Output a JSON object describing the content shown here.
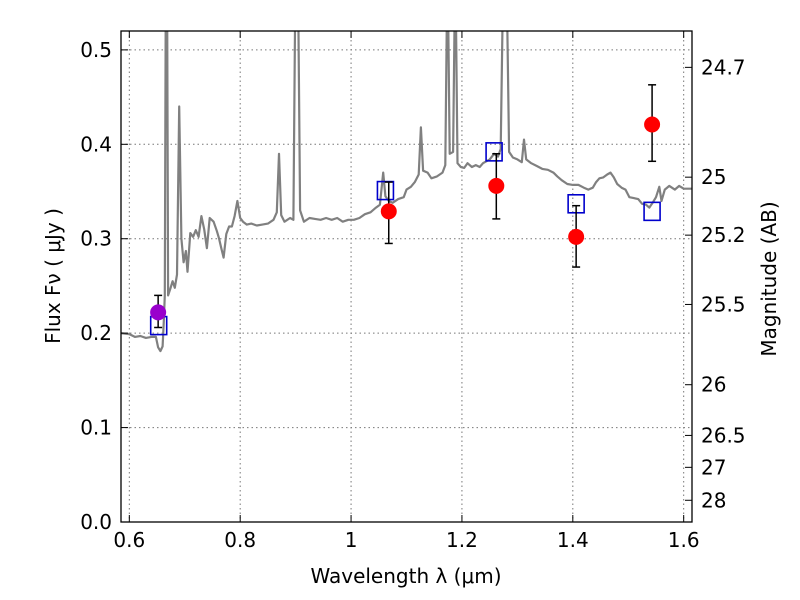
{
  "chart_data": {
    "type": "scatter",
    "xlabel": "Wavelength  λ (μm)",
    "ylabel": "Flux  Fν  ( μJy )",
    "ylabel_right": "Magnitude (AB)",
    "xlim": [
      0.585,
      1.615
    ],
    "ylim": [
      0.0,
      0.52
    ],
    "grid": true,
    "x_ticks": [
      0.6,
      0.8,
      1.0,
      1.2,
      1.4,
      1.6
    ],
    "x_tick_labels": [
      "0.6",
      "0.8",
      "1",
      "1.2",
      "1.4",
      "1.6"
    ],
    "y_ticks": [
      0.0,
      0.1,
      0.2,
      0.3,
      0.4,
      0.5
    ],
    "y_tick_labels": [
      "0.0",
      "0.1",
      "0.2",
      "0.3",
      "0.4",
      "0.5"
    ],
    "right_ticks": [
      {
        "label": "24.7",
        "flux": 0.4815
      },
      {
        "label": "25",
        "flux": 0.3652
      },
      {
        "label": "25.2",
        "flux": 0.3038
      },
      {
        "label": "25.5",
        "flux": 0.2304
      },
      {
        "label": "26",
        "flux": 0.1454
      },
      {
        "label": "26.5",
        "flux": 0.0917
      },
      {
        "label": "27",
        "flux": 0.0579
      },
      {
        "label": "28",
        "flux": 0.023
      }
    ],
    "series": [
      {
        "kind": "line",
        "color": "#808080",
        "points": [
          [
            0.585,
            0.2
          ],
          [
            0.6,
            0.199
          ],
          [
            0.61,
            0.196
          ],
          [
            0.62,
            0.197
          ],
          [
            0.63,
            0.195
          ],
          [
            0.64,
            0.196
          ],
          [
            0.648,
            0.196
          ],
          [
            0.652,
            0.185
          ],
          [
            0.656,
            0.181
          ],
          [
            0.66,
            0.186
          ],
          [
            0.662,
            0.21
          ],
          [
            0.664,
            0.24
          ],
          [
            0.666,
            0.6
          ],
          [
            0.668,
            0.6
          ],
          [
            0.67,
            0.24
          ],
          [
            0.674,
            0.247
          ],
          [
            0.678,
            0.255
          ],
          [
            0.682,
            0.248
          ],
          [
            0.686,
            0.262
          ],
          [
            0.69,
            0.44
          ],
          [
            0.694,
            0.3
          ],
          [
            0.698,
            0.275
          ],
          [
            0.702,
            0.287
          ],
          [
            0.705,
            0.265
          ],
          [
            0.71,
            0.306
          ],
          [
            0.715,
            0.302
          ],
          [
            0.72,
            0.309
          ],
          [
            0.725,
            0.302
          ],
          [
            0.73,
            0.324
          ],
          [
            0.735,
            0.31
          ],
          [
            0.74,
            0.29
          ],
          [
            0.745,
            0.322
          ],
          [
            0.752,
            0.318
          ],
          [
            0.758,
            0.308
          ],
          [
            0.762,
            0.3
          ],
          [
            0.766,
            0.29
          ],
          [
            0.77,
            0.28
          ],
          [
            0.775,
            0.305
          ],
          [
            0.78,
            0.313
          ],
          [
            0.785,
            0.313
          ],
          [
            0.79,
            0.324
          ],
          [
            0.795,
            0.34
          ],
          [
            0.8,
            0.322
          ],
          [
            0.805,
            0.318
          ],
          [
            0.812,
            0.315
          ],
          [
            0.82,
            0.316
          ],
          [
            0.83,
            0.314
          ],
          [
            0.84,
            0.315
          ],
          [
            0.85,
            0.316
          ],
          [
            0.86,
            0.32
          ],
          [
            0.866,
            0.328
          ],
          [
            0.87,
            0.39
          ],
          [
            0.874,
            0.325
          ],
          [
            0.88,
            0.318
          ],
          [
            0.89,
            0.322
          ],
          [
            0.896,
            0.32
          ],
          [
            0.9,
            0.6
          ],
          [
            0.904,
            0.6
          ],
          [
            0.908,
            0.33
          ],
          [
            0.915,
            0.318
          ],
          [
            0.925,
            0.322
          ],
          [
            0.935,
            0.321
          ],
          [
            0.945,
            0.32
          ],
          [
            0.955,
            0.322
          ],
          [
            0.965,
            0.32
          ],
          [
            0.975,
            0.322
          ],
          [
            0.985,
            0.318
          ],
          [
            0.995,
            0.32
          ],
          [
            1.005,
            0.32
          ],
          [
            1.015,
            0.322
          ],
          [
            1.025,
            0.326
          ],
          [
            1.035,
            0.328
          ],
          [
            1.045,
            0.333
          ],
          [
            1.052,
            0.336
          ],
          [
            1.058,
            0.37
          ],
          [
            1.062,
            0.345
          ],
          [
            1.068,
            0.34
          ],
          [
            1.075,
            0.338
          ],
          [
            1.085,
            0.342
          ],
          [
            1.095,
            0.344
          ],
          [
            1.1,
            0.352
          ],
          [
            1.108,
            0.355
          ],
          [
            1.115,
            0.36
          ],
          [
            1.122,
            0.368
          ],
          [
            1.126,
            0.418
          ],
          [
            1.13,
            0.372
          ],
          [
            1.138,
            0.37
          ],
          [
            1.145,
            0.364
          ],
          [
            1.155,
            0.366
          ],
          [
            1.165,
            0.37
          ],
          [
            1.17,
            0.378
          ],
          [
            1.174,
            0.6
          ],
          [
            1.178,
            0.39
          ],
          [
            1.184,
            0.392
          ],
          [
            1.188,
            0.6
          ],
          [
            1.192,
            0.38
          ],
          [
            1.198,
            0.376
          ],
          [
            1.204,
            0.375
          ],
          [
            1.21,
            0.38
          ],
          [
            1.218,
            0.376
          ],
          [
            1.225,
            0.378
          ],
          [
            1.232,
            0.376
          ],
          [
            1.238,
            0.38
          ],
          [
            1.244,
            0.382
          ],
          [
            1.25,
            0.384
          ],
          [
            1.258,
            0.39
          ],
          [
            1.265,
            0.387
          ],
          [
            1.27,
            0.395
          ],
          [
            1.275,
            0.6
          ],
          [
            1.28,
            0.6
          ],
          [
            1.285,
            0.392
          ],
          [
            1.292,
            0.386
          ],
          [
            1.3,
            0.384
          ],
          [
            1.308,
            0.381
          ],
          [
            1.312,
            0.405
          ],
          [
            1.316,
            0.384
          ],
          [
            1.325,
            0.38
          ],
          [
            1.335,
            0.377
          ],
          [
            1.345,
            0.374
          ],
          [
            1.355,
            0.373
          ],
          [
            1.365,
            0.37
          ],
          [
            1.372,
            0.366
          ],
          [
            1.38,
            0.362
          ],
          [
            1.39,
            0.358
          ],
          [
            1.4,
            0.357
          ],
          [
            1.41,
            0.357
          ],
          [
            1.42,
            0.354
          ],
          [
            1.428,
            0.352
          ],
          [
            1.436,
            0.354
          ],
          [
            1.442,
            0.36
          ],
          [
            1.448,
            0.364
          ],
          [
            1.455,
            0.365
          ],
          [
            1.462,
            0.368
          ],
          [
            1.468,
            0.37
          ],
          [
            1.474,
            0.365
          ],
          [
            1.48,
            0.358
          ],
          [
            1.488,
            0.354
          ],
          [
            1.495,
            0.352
          ],
          [
            1.502,
            0.344
          ],
          [
            1.51,
            0.343
          ],
          [
            1.518,
            0.342
          ],
          [
            1.525,
            0.337
          ],
          [
            1.532,
            0.336
          ],
          [
            1.538,
            0.333
          ],
          [
            1.544,
            0.338
          ],
          [
            1.55,
            0.344
          ],
          [
            1.556,
            0.355
          ],
          [
            1.56,
            0.34
          ],
          [
            1.566,
            0.352
          ],
          [
            1.574,
            0.356
          ],
          [
            1.584,
            0.352
          ],
          [
            1.592,
            0.356
          ],
          [
            1.6,
            0.353
          ],
          [
            1.615,
            0.353
          ]
        ]
      },
      {
        "kind": "squares",
        "color": "#0000cc",
        "points": [
          [
            0.653,
            0.208
          ],
          [
            1.062,
            0.351
          ],
          [
            1.258,
            0.392
          ],
          [
            1.406,
            0.337
          ],
          [
            1.543,
            0.329
          ]
        ]
      },
      {
        "kind": "points_with_errors",
        "color": "#ff0000",
        "points": [
          {
            "x": 1.068,
            "y": 0.329,
            "yerr_low": 0.295,
            "yerr_high": 0.36
          },
          {
            "x": 1.262,
            "y": 0.356,
            "yerr_low": 0.321,
            "yerr_high": 0.39
          },
          {
            "x": 1.406,
            "y": 0.302,
            "yerr_low": 0.27,
            "yerr_high": 0.335
          },
          {
            "x": 1.543,
            "y": 0.421,
            "yerr_low": 0.382,
            "yerr_high": 0.463
          }
        ]
      },
      {
        "kind": "points_with_errors",
        "color": "#9900cc",
        "points": [
          {
            "x": 0.652,
            "y": 0.222,
            "yerr_low": 0.206,
            "yerr_high": 0.24
          }
        ]
      }
    ]
  }
}
